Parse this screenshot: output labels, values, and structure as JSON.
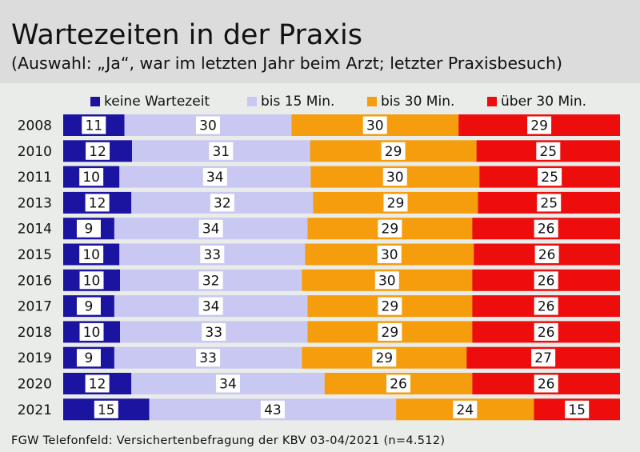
{
  "header": {
    "title": "Wartezeiten in der Praxis",
    "subtitle": "(Auswahl: „Ja“, war im letzten Jahr beim Arzt; letzter Praxisbesuch)"
  },
  "footer": {
    "source": "FGW Telefonfeld: Versichertenbefragung der KBV 03-04/2021 (n=4.512)"
  },
  "colors": {
    "background": "#e9ece8",
    "header_background": "#dcdcdc",
    "label_box": "#ffffff"
  },
  "chart_data": {
    "type": "bar",
    "orientation": "horizontal",
    "stacked": true,
    "normalized": "percent",
    "legend_position": "top",
    "grid": false,
    "categories": [
      "2008",
      "2010",
      "2011",
      "2013",
      "2014",
      "2015",
      "2016",
      "2017",
      "2018",
      "2019",
      "2020",
      "2021"
    ],
    "series": [
      {
        "name": "keine Wartezeit",
        "color": "#1a14a0",
        "values": [
          11,
          12,
          10,
          12,
          9,
          10,
          10,
          9,
          10,
          9,
          12,
          15
        ]
      },
      {
        "name": "bis 15 Min.",
        "color": "#c8c8f2",
        "values": [
          30,
          31,
          34,
          32,
          34,
          33,
          32,
          34,
          33,
          33,
          34,
          43
        ]
      },
      {
        "name": "bis 30 Min.",
        "color": "#f59d0c",
        "values": [
          30,
          29,
          30,
          29,
          29,
          30,
          30,
          29,
          29,
          29,
          26,
          24
        ]
      },
      {
        "name": "über 30 Min.",
        "color": "#ee0d0d",
        "values": [
          29,
          25,
          25,
          25,
          26,
          26,
          26,
          26,
          26,
          27,
          26,
          15
        ]
      }
    ]
  }
}
